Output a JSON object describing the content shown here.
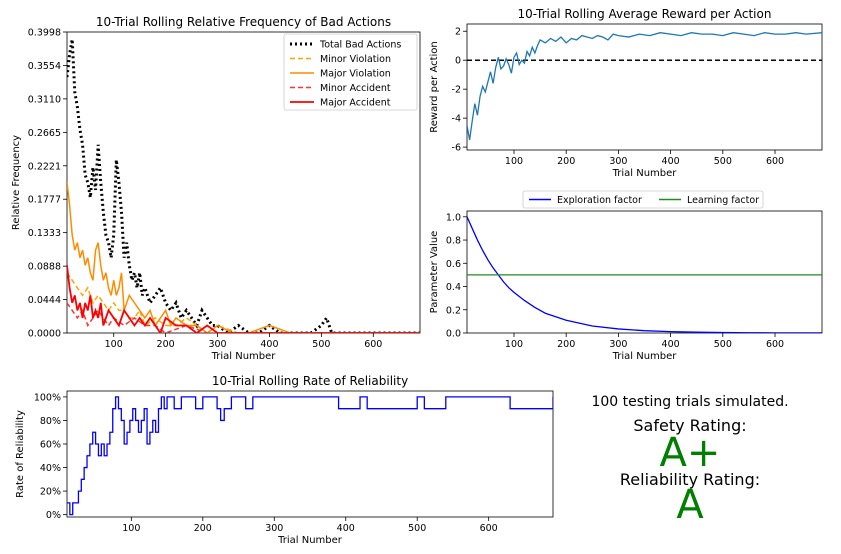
{
  "panel_text": {
    "trials": "100 testing trials simulated.",
    "safety_label": "Safety Rating:",
    "safety_grade": "A+",
    "reliability_label": "Reliability Rating:",
    "reliability_grade": "A",
    "grade_color": "#007f00"
  },
  "chart_data": [
    {
      "id": "bad-actions",
      "type": "line",
      "title": "10-Trial Rolling Relative Frequency of Bad Actions",
      "xlabel": "Trial Number",
      "ylabel": "Relative Frequency",
      "xlim": [
        10,
        690
      ],
      "ylim": [
        0,
        0.3998
      ],
      "xticks": [
        100,
        200,
        300,
        400,
        500,
        600
      ],
      "yticks": [
        "0.0000",
        "0.0444",
        "0.0888",
        "0.1333",
        "0.1777",
        "0.2221",
        "0.2665",
        "0.3110",
        "0.3554",
        "0.3998"
      ],
      "legend": "top-right",
      "series": [
        {
          "name": "Total Bad Actions",
          "color": "#000000",
          "style": "dotted",
          "width": 3,
          "x": [
            10,
            15,
            20,
            25,
            30,
            35,
            40,
            45,
            50,
            55,
            60,
            65,
            70,
            75,
            80,
            85,
            90,
            95,
            100,
            105,
            110,
            115,
            120,
            125,
            130,
            135,
            140,
            145,
            150,
            155,
            160,
            170,
            180,
            190,
            200,
            210,
            220,
            230,
            240,
            250,
            260,
            270,
            280,
            290,
            300,
            320,
            340,
            360,
            380,
            400,
            420,
            440,
            460,
            480,
            500,
            510,
            515,
            520,
            540,
            560,
            580,
            600,
            620,
            640,
            660,
            690
          ],
          "y": [
            0.34,
            0.37,
            0.39,
            0.32,
            0.3,
            0.27,
            0.25,
            0.21,
            0.2,
            0.18,
            0.22,
            0.19,
            0.25,
            0.2,
            0.16,
            0.13,
            0.12,
            0.1,
            0.13,
            0.23,
            0.2,
            0.16,
            0.1,
            0.12,
            0.09,
            0.07,
            0.08,
            0.06,
            0.08,
            0.05,
            0.06,
            0.04,
            0.05,
            0.06,
            0.04,
            0.03,
            0.04,
            0.02,
            0.03,
            0.02,
            0.01,
            0.03,
            0.02,
            0.01,
            0.01,
            0.0,
            0.01,
            0.0,
            0.0,
            0.01,
            0.0,
            0.0,
            0.0,
            0.0,
            0.01,
            0.02,
            0.01,
            0.0,
            0.0,
            0.0,
            0.0,
            0.0,
            0.0,
            0.0,
            0.0,
            0.0
          ]
        },
        {
          "name": "Minor Violation",
          "color": "#ffa500",
          "style": "dashed",
          "width": 1.5,
          "x": [
            10,
            20,
            30,
            40,
            50,
            60,
            70,
            80,
            90,
            100,
            110,
            120,
            130,
            140,
            150,
            160,
            180,
            200,
            220,
            240,
            260,
            280,
            300,
            340,
            380,
            420,
            460,
            500,
            540,
            600,
            690
          ],
          "y": [
            0.08,
            0.07,
            0.06,
            0.05,
            0.06,
            0.04,
            0.05,
            0.04,
            0.03,
            0.04,
            0.03,
            0.03,
            0.02,
            0.02,
            0.03,
            0.01,
            0.02,
            0.01,
            0.01,
            0.02,
            0.01,
            0.0,
            0.01,
            0.0,
            0.0,
            0.0,
            0.0,
            0.0,
            0.0,
            0.0,
            0.0
          ]
        },
        {
          "name": "Major Violation",
          "color": "#ff8c00",
          "style": "solid",
          "width": 1.5,
          "x": [
            10,
            15,
            20,
            25,
            30,
            35,
            40,
            45,
            50,
            55,
            60,
            65,
            70,
            75,
            80,
            85,
            90,
            95,
            100,
            105,
            110,
            115,
            120,
            130,
            140,
            150,
            160,
            170,
            180,
            190,
            200,
            210,
            220,
            240,
            260,
            280,
            300,
            330,
            360,
            400,
            440,
            480,
            520,
            560,
            600,
            690
          ],
          "y": [
            0.2,
            0.17,
            0.13,
            0.11,
            0.12,
            0.1,
            0.11,
            0.09,
            0.1,
            0.08,
            0.07,
            0.11,
            0.12,
            0.09,
            0.07,
            0.08,
            0.06,
            0.05,
            0.07,
            0.05,
            0.06,
            0.08,
            0.03,
            0.05,
            0.04,
            0.03,
            0.02,
            0.03,
            0.01,
            0.02,
            0.03,
            0.01,
            0.02,
            0.01,
            0.01,
            0.0,
            0.01,
            0.0,
            0.0,
            0.01,
            0.0,
            0.0,
            0.0,
            0.0,
            0.0,
            0.0
          ]
        },
        {
          "name": "Minor Accident",
          "color": "#ff3333",
          "style": "dashed",
          "width": 1.5,
          "x": [
            10,
            20,
            30,
            40,
            50,
            60,
            70,
            80,
            90,
            100,
            120,
            140,
            160,
            180,
            200,
            240,
            280,
            320,
            360,
            400,
            440,
            480,
            520,
            560,
            600,
            690
          ],
          "y": [
            0.04,
            0.03,
            0.02,
            0.03,
            0.01,
            0.02,
            0.03,
            0.02,
            0.01,
            0.02,
            0.01,
            0.02,
            0.01,
            0.01,
            0.0,
            0.01,
            0.0,
            0.0,
            0.0,
            0.0,
            0.0,
            0.0,
            0.0,
            0.0,
            0.0,
            0.0
          ]
        },
        {
          "name": "Major Accident",
          "color": "#ff0000",
          "style": "solid",
          "width": 1.8,
          "x": [
            10,
            15,
            20,
            25,
            30,
            35,
            40,
            45,
            50,
            55,
            60,
            65,
            70,
            75,
            80,
            90,
            100,
            110,
            120,
            130,
            140,
            150,
            160,
            170,
            180,
            190,
            200,
            220,
            240,
            260,
            280,
            300,
            340,
            380,
            420,
            460,
            500,
            540,
            600,
            690
          ],
          "y": [
            0.09,
            0.06,
            0.04,
            0.05,
            0.03,
            0.04,
            0.02,
            0.04,
            0.03,
            0.05,
            0.02,
            0.03,
            0.02,
            0.04,
            0.01,
            0.03,
            0.02,
            0.01,
            0.03,
            0.02,
            0.01,
            0.02,
            0.01,
            0.02,
            0.01,
            0.0,
            0.02,
            0.01,
            0.01,
            0.0,
            0.01,
            0.0,
            0.0,
            0.0,
            0.0,
            0.0,
            0.0,
            0.0,
            0.0,
            0.0
          ]
        }
      ]
    },
    {
      "id": "reward",
      "type": "line",
      "title": "10-Trial Rolling Average Reward per Action",
      "xlabel": "Trial Number",
      "ylabel": "Reward per Action",
      "xlim": [
        10,
        690
      ],
      "ylim": [
        -6.2,
        2.5
      ],
      "xticks": [
        100,
        200,
        300,
        400,
        500,
        600
      ],
      "yticks": [
        -6,
        -4,
        -2,
        0,
        2
      ],
      "reference_line": {
        "y": 0,
        "color": "#000000",
        "style": "dashed"
      },
      "series": [
        {
          "color": "#1f77b4",
          "x": [
            10,
            15,
            20,
            25,
            30,
            35,
            40,
            45,
            50,
            55,
            60,
            65,
            70,
            75,
            80,
            85,
            90,
            95,
            100,
            105,
            110,
            115,
            120,
            125,
            130,
            135,
            140,
            145,
            150,
            160,
            170,
            180,
            190,
            200,
            210,
            220,
            230,
            240,
            250,
            260,
            270,
            280,
            290,
            300,
            320,
            340,
            360,
            380,
            400,
            420,
            440,
            460,
            480,
            500,
            520,
            540,
            560,
            580,
            600,
            620,
            640,
            660,
            690
          ],
          "y": [
            -4.5,
            -5.5,
            -4.2,
            -3.0,
            -3.8,
            -2.5,
            -1.8,
            -2.2,
            -1.5,
            -0.8,
            -1.6,
            -0.5,
            0.2,
            -0.6,
            -0.4,
            0.1,
            -0.3,
            -0.9,
            0.2,
            0.5,
            -0.3,
            0.0,
            -0.2,
            0.6,
            0.3,
            0.9,
            0.5,
            1.0,
            1.4,
            1.2,
            1.5,
            1.3,
            1.6,
            1.2,
            1.5,
            1.4,
            1.7,
            1.6,
            1.5,
            1.7,
            1.6,
            1.4,
            1.8,
            1.7,
            1.6,
            1.8,
            1.7,
            1.9,
            1.8,
            1.7,
            1.9,
            1.8,
            1.8,
            1.7,
            1.9,
            1.8,
            1.7,
            1.9,
            1.8,
            1.8,
            1.9,
            1.8,
            1.9
          ]
        }
      ]
    },
    {
      "id": "parameters",
      "type": "line",
      "xlabel": "Trial Number",
      "ylabel": "Parameter Value",
      "xlim": [
        10,
        690
      ],
      "ylim": [
        0,
        1.05
      ],
      "xticks": [
        100,
        200,
        300,
        400,
        500,
        600
      ],
      "yticks": [
        "0.0",
        "0.2",
        "0.4",
        "0.6",
        "0.8",
        "1.0"
      ],
      "legend": "top-center",
      "series": [
        {
          "name": "Exploration factor",
          "color": "#0000ff",
          "x": [
            10,
            20,
            30,
            40,
            50,
            60,
            70,
            80,
            90,
            100,
            120,
            140,
            160,
            180,
            200,
            250,
            300,
            350,
            400,
            450,
            500,
            550,
            600,
            650,
            690
          ],
          "y": [
            1.0,
            0.9,
            0.8,
            0.71,
            0.63,
            0.56,
            0.5,
            0.44,
            0.39,
            0.35,
            0.28,
            0.22,
            0.17,
            0.14,
            0.11,
            0.06,
            0.035,
            0.02,
            0.012,
            0.007,
            0.004,
            0.002,
            0.0013,
            0.0008,
            0.0005
          ]
        },
        {
          "name": "Learning factor",
          "color": "#228b22",
          "x": [
            10,
            690
          ],
          "y": [
            0.5,
            0.5
          ]
        }
      ]
    },
    {
      "id": "reliability",
      "type": "line",
      "title": "10-Trial Rolling Rate of Reliability",
      "xlabel": "Trial Number",
      "ylabel": "Rate of Reliability",
      "xlim": [
        10,
        690
      ],
      "ylim": [
        -2,
        105
      ],
      "xticks": [
        100,
        200,
        300,
        400,
        500,
        600
      ],
      "yticks": [
        "0%",
        "20%",
        "40%",
        "60%",
        "80%",
        "100%"
      ],
      "series": [
        {
          "color": "#0000ff",
          "step": true,
          "x": [
            10,
            14,
            18,
            22,
            26,
            30,
            34,
            38,
            42,
            46,
            50,
            54,
            58,
            62,
            66,
            70,
            74,
            78,
            82,
            86,
            90,
            94,
            98,
            102,
            106,
            110,
            114,
            118,
            122,
            126,
            130,
            134,
            138,
            142,
            146,
            150,
            160,
            170,
            180,
            190,
            200,
            210,
            220,
            225,
            230,
            240,
            260,
            270,
            280,
            300,
            380,
            390,
            420,
            430,
            500,
            510,
            530,
            540,
            620,
            630,
            690
          ],
          "y": [
            10,
            0,
            10,
            10,
            20,
            30,
            40,
            50,
            60,
            70,
            60,
            50,
            60,
            50,
            60,
            70,
            90,
            100,
            90,
            80,
            60,
            70,
            80,
            90,
            80,
            70,
            80,
            90,
            60,
            70,
            80,
            70,
            90,
            100,
            90,
            100,
            90,
            100,
            100,
            90,
            100,
            100,
            90,
            80,
            90,
            100,
            90,
            100,
            100,
            100,
            100,
            90,
            100,
            90,
            100,
            90,
            90,
            100,
            100,
            90,
            100
          ]
        }
      ]
    }
  ]
}
